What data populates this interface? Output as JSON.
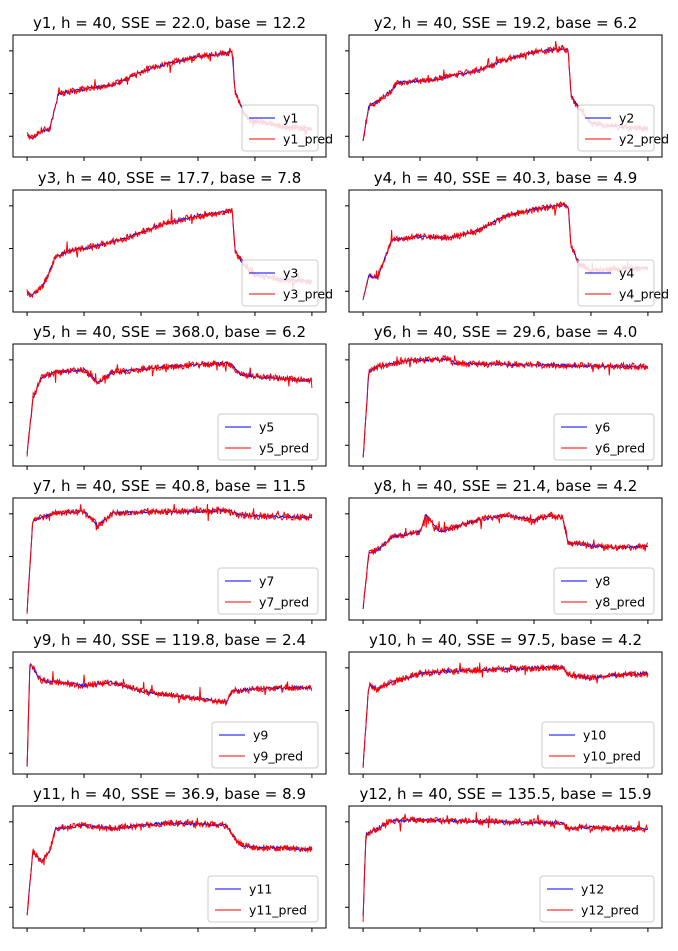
{
  "colors": {
    "actual": "#0000ff",
    "predicted": "#ff0000"
  },
  "chart_data": [
    {
      "type": "line",
      "title": "y1, h = 40, SSE = 22.0, base = 12.2",
      "legend": "lower-right",
      "series": [
        {
          "name": "y1",
          "color": "#0000ff",
          "points": [
            [
              0,
              0.15
            ],
            [
              0.02,
              0.12
            ],
            [
              0.05,
              0.18
            ],
            [
              0.08,
              0.2
            ],
            [
              0.11,
              0.52
            ],
            [
              0.2,
              0.56
            ],
            [
              0.3,
              0.6
            ],
            [
              0.4,
              0.72
            ],
            [
              0.5,
              0.8
            ],
            [
              0.6,
              0.86
            ],
            [
              0.7,
              0.89
            ],
            [
              0.72,
              0.9
            ],
            [
              0.73,
              0.55
            ],
            [
              0.75,
              0.4
            ],
            [
              0.78,
              0.28
            ],
            [
              0.85,
              0.25
            ],
            [
              0.9,
              0.22
            ],
            [
              1,
              0.2
            ]
          ]
        },
        {
          "name": "y1_pred",
          "color": "#ff0000"
        }
      ]
    },
    {
      "type": "line",
      "title": "y2, h = 40, SSE = 19.2, base = 6.2",
      "legend": "lower-right",
      "series": [
        {
          "name": "y2",
          "color": "#0000ff",
          "points": [
            [
              0,
              0.1
            ],
            [
              0.02,
              0.4
            ],
            [
              0.05,
              0.45
            ],
            [
              0.1,
              0.55
            ],
            [
              0.12,
              0.62
            ],
            [
              0.25,
              0.65
            ],
            [
              0.3,
              0.68
            ],
            [
              0.4,
              0.73
            ],
            [
              0.5,
              0.83
            ],
            [
              0.6,
              0.9
            ],
            [
              0.7,
              0.93
            ],
            [
              0.72,
              0.92
            ],
            [
              0.73,
              0.5
            ],
            [
              0.76,
              0.38
            ],
            [
              0.8,
              0.25
            ],
            [
              0.9,
              0.22
            ],
            [
              1,
              0.2
            ]
          ]
        },
        {
          "name": "y2_pred",
          "color": "#ff0000"
        }
      ]
    },
    {
      "type": "line",
      "title": "y3, h = 40, SSE = 17.7, base = 7.8",
      "legend": "lower-right",
      "series": [
        {
          "name": "y3",
          "color": "#0000ff",
          "points": [
            [
              0,
              0.12
            ],
            [
              0.02,
              0.1
            ],
            [
              0.06,
              0.2
            ],
            [
              0.1,
              0.45
            ],
            [
              0.15,
              0.5
            ],
            [
              0.25,
              0.55
            ],
            [
              0.35,
              0.62
            ],
            [
              0.45,
              0.72
            ],
            [
              0.5,
              0.76
            ],
            [
              0.6,
              0.82
            ],
            [
              0.7,
              0.86
            ],
            [
              0.72,
              0.88
            ],
            [
              0.73,
              0.5
            ],
            [
              0.76,
              0.38
            ],
            [
              0.8,
              0.28
            ],
            [
              0.9,
              0.24
            ],
            [
              1,
              0.22
            ]
          ]
        },
        {
          "name": "y3_pred",
          "color": "#ff0000"
        }
      ]
    },
    {
      "type": "line",
      "title": "y4, h = 40, SSE = 40.3, base = 4.9",
      "legend": "lower-right",
      "series": [
        {
          "name": "y4",
          "color": "#0000ff",
          "points": [
            [
              0,
              0.05
            ],
            [
              0.02,
              0.28
            ],
            [
              0.05,
              0.25
            ],
            [
              0.1,
              0.6
            ],
            [
              0.2,
              0.63
            ],
            [
              0.3,
              0.62
            ],
            [
              0.4,
              0.68
            ],
            [
              0.5,
              0.82
            ],
            [
              0.55,
              0.85
            ],
            [
              0.6,
              0.88
            ],
            [
              0.7,
              0.92
            ],
            [
              0.72,
              0.91
            ],
            [
              0.73,
              0.55
            ],
            [
              0.76,
              0.38
            ],
            [
              0.8,
              0.32
            ],
            [
              0.9,
              0.34
            ],
            [
              1,
              0.35
            ]
          ]
        },
        {
          "name": "y4_pred",
          "color": "#ff0000"
        }
      ]
    },
    {
      "type": "line",
      "title": "y5, h = 40, SSE = 368.0, base = 6.2",
      "legend": "lower-right",
      "series": [
        {
          "name": "y5",
          "color": "#0000ff",
          "points": [
            [
              0,
              0.05
            ],
            [
              0.02,
              0.55
            ],
            [
              0.05,
              0.75
            ],
            [
              0.1,
              0.8
            ],
            [
              0.2,
              0.82
            ],
            [
              0.25,
              0.7
            ],
            [
              0.3,
              0.8
            ],
            [
              0.5,
              0.85
            ],
            [
              0.7,
              0.88
            ],
            [
              0.72,
              0.86
            ],
            [
              0.75,
              0.78
            ],
            [
              0.8,
              0.76
            ],
            [
              0.9,
              0.74
            ],
            [
              1,
              0.72
            ]
          ]
        },
        {
          "name": "y5_pred",
          "color": "#ff0000"
        }
      ]
    },
    {
      "type": "line",
      "title": "y6, h = 40, SSE = 29.6, base = 4.0",
      "legend": "lower-right",
      "series": [
        {
          "name": "y6",
          "color": "#0000ff",
          "points": [
            [
              0,
              0.02
            ],
            [
              0.02,
              0.8
            ],
            [
              0.05,
              0.85
            ],
            [
              0.15,
              0.9
            ],
            [
              0.3,
              0.92
            ],
            [
              0.32,
              0.88
            ],
            [
              0.5,
              0.87
            ],
            [
              0.7,
              0.86
            ],
            [
              1,
              0.85
            ]
          ]
        },
        {
          "name": "y6_pred",
          "color": "#ff0000"
        }
      ]
    },
    {
      "type": "line",
      "title": "y7, h = 40, SSE = 40.8, base = 11.5",
      "legend": "lower-right",
      "series": [
        {
          "name": "y7",
          "color": "#0000ff",
          "points": [
            [
              0,
              0.02
            ],
            [
              0.02,
              0.85
            ],
            [
              0.1,
              0.92
            ],
            [
              0.2,
              0.93
            ],
            [
              0.25,
              0.8
            ],
            [
              0.3,
              0.92
            ],
            [
              0.5,
              0.93
            ],
            [
              0.7,
              0.94
            ],
            [
              0.75,
              0.9
            ],
            [
              0.8,
              0.89
            ],
            [
              1,
              0.88
            ]
          ]
        },
        {
          "name": "y7_pred",
          "color": "#ff0000"
        }
      ]
    },
    {
      "type": "line",
      "title": "y8, h = 40, SSE = 21.4, base = 4.2",
      "legend": "lower-right",
      "series": [
        {
          "name": "y8",
          "color": "#0000ff",
          "points": [
            [
              0,
              0.05
            ],
            [
              0.02,
              0.55
            ],
            [
              0.05,
              0.58
            ],
            [
              0.1,
              0.7
            ],
            [
              0.2,
              0.75
            ],
            [
              0.22,
              0.9
            ],
            [
              0.27,
              0.75
            ],
            [
              0.4,
              0.85
            ],
            [
              0.5,
              0.9
            ],
            [
              0.6,
              0.85
            ],
            [
              0.65,
              0.9
            ],
            [
              0.7,
              0.88
            ],
            [
              0.72,
              0.65
            ],
            [
              0.8,
              0.62
            ],
            [
              0.9,
              0.6
            ],
            [
              1,
              0.62
            ]
          ]
        },
        {
          "name": "y8_pred",
          "color": "#ff0000"
        }
      ]
    },
    {
      "type": "line",
      "title": "y9, h = 40, SSE = 119.8, base = 2.4",
      "legend": "lower-right",
      "series": [
        {
          "name": "y9",
          "color": "#0000ff",
          "points": [
            [
              0,
              0.02
            ],
            [
              0.01,
              0.95
            ],
            [
              0.05,
              0.8
            ],
            [
              0.1,
              0.78
            ],
            [
              0.2,
              0.75
            ],
            [
              0.3,
              0.78
            ],
            [
              0.4,
              0.7
            ],
            [
              0.5,
              0.66
            ],
            [
              0.6,
              0.63
            ],
            [
              0.7,
              0.6
            ],
            [
              0.72,
              0.7
            ],
            [
              0.8,
              0.72
            ],
            [
              0.9,
              0.73
            ],
            [
              1,
              0.73
            ]
          ]
        },
        {
          "name": "y9_pred",
          "color": "#ff0000"
        }
      ]
    },
    {
      "type": "line",
      "title": "y10, h = 40, SSE = 97.5, base = 4.2",
      "legend": "lower-right",
      "series": [
        {
          "name": "y10",
          "color": "#0000ff",
          "points": [
            [
              0,
              0.02
            ],
            [
              0.02,
              0.75
            ],
            [
              0.05,
              0.72
            ],
            [
              0.1,
              0.78
            ],
            [
              0.2,
              0.86
            ],
            [
              0.3,
              0.88
            ],
            [
              0.5,
              0.9
            ],
            [
              0.7,
              0.92
            ],
            [
              0.72,
              0.85
            ],
            [
              0.8,
              0.82
            ],
            [
              0.9,
              0.85
            ],
            [
              1,
              0.86
            ]
          ]
        },
        {
          "name": "y10_pred",
          "color": "#ff0000"
        }
      ]
    },
    {
      "type": "line",
      "title": "y11, h = 40, SSE = 36.9, base = 8.9",
      "legend": "lower-right",
      "series": [
        {
          "name": "y11",
          "color": "#0000ff",
          "points": [
            [
              0,
              0.05
            ],
            [
              0.02,
              0.65
            ],
            [
              0.05,
              0.55
            ],
            [
              0.08,
              0.65
            ],
            [
              0.1,
              0.85
            ],
            [
              0.2,
              0.88
            ],
            [
              0.3,
              0.85
            ],
            [
              0.4,
              0.88
            ],
            [
              0.5,
              0.9
            ],
            [
              0.6,
              0.89
            ],
            [
              0.7,
              0.88
            ],
            [
              0.72,
              0.8
            ],
            [
              0.75,
              0.7
            ],
            [
              0.8,
              0.68
            ],
            [
              0.9,
              0.67
            ],
            [
              1,
              0.66
            ]
          ]
        },
        {
          "name": "y11_pred",
          "color": "#ff0000"
        }
      ]
    },
    {
      "type": "line",
      "title": "y12, h = 40, SSE = 135.5, base = 15.9",
      "legend": "lower-right",
      "series": [
        {
          "name": "y12",
          "color": "#0000ff",
          "points": [
            [
              0,
              0.05
            ],
            [
              0.01,
              0.8
            ],
            [
              0.05,
              0.85
            ],
            [
              0.1,
              0.92
            ],
            [
              0.2,
              0.93
            ],
            [
              0.3,
              0.92
            ],
            [
              0.5,
              0.91
            ],
            [
              0.7,
              0.9
            ],
            [
              0.72,
              0.85
            ],
            [
              0.8,
              0.86
            ],
            [
              0.9,
              0.85
            ],
            [
              1,
              0.85
            ]
          ]
        },
        {
          "name": "y12_pred",
          "color": "#ff0000"
        }
      ]
    }
  ]
}
